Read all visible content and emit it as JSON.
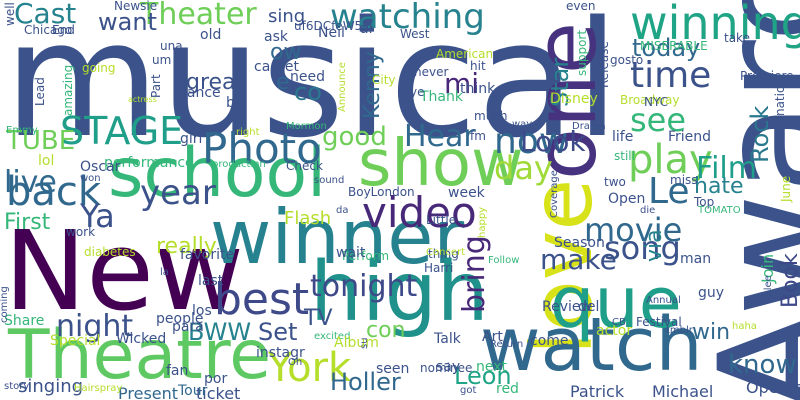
{
  "words": [
    {
      "text": "musical",
      "color": "#3b528b"
    },
    {
      "text": "Award",
      "color": "#3b528b"
    },
    {
      "text": "New",
      "color": "#440154"
    },
    {
      "text": "winner",
      "color": "#26828e"
    },
    {
      "text": "school",
      "color": "#35b779"
    },
    {
      "text": "high",
      "color": "#21918c"
    },
    {
      "text": "love",
      "color": "#d8e219"
    },
    {
      "text": "Theatre",
      "color": "#5ec962"
    },
    {
      "text": "watch",
      "color": "#31688e"
    },
    {
      "text": "que",
      "color": "#1f9e89"
    },
    {
      "text": "one",
      "color": "#46327e"
    },
    {
      "text": "show",
      "color": "#6ece58"
    },
    {
      "text": "winning",
      "color": "#20a486"
    },
    {
      "text": "Photo",
      "color": "#31688e"
    },
    {
      "text": "best",
      "color": "#3e4989"
    },
    {
      "text": "York",
      "color": "#b5de2b"
    },
    {
      "text": "video",
      "color": "#482878"
    },
    {
      "text": "STAGE",
      "color": "#1f9e89"
    },
    {
      "text": "back",
      "color": "#31688e"
    },
    {
      "text": "Theater",
      "color": "#6ece58"
    },
    {
      "text": "watching",
      "color": "#26828e"
    },
    {
      "text": "Cast",
      "color": "#26828e"
    },
    {
      "text": "play",
      "color": "#6ece58"
    },
    {
      "text": "time",
      "color": "#3b528b"
    },
    {
      "text": "see",
      "color": "#35b779"
    },
    {
      "text": "now",
      "color": "#31688e"
    },
    {
      "text": "day",
      "color": "#a0da39"
    },
    {
      "text": "movie",
      "color": "#31688e"
    },
    {
      "text": "song",
      "color": "#3b528b"
    },
    {
      "text": "Ya",
      "color": "#3b528b"
    },
    {
      "text": "year",
      "color": "#3b528b"
    },
    {
      "text": "night",
      "color": "#3b528b"
    },
    {
      "text": "tonight",
      "color": "#3e4989"
    },
    {
      "text": "Hear",
      "color": "#31688e"
    },
    {
      "text": "Look",
      "color": "#3e4989"
    },
    {
      "text": "Film",
      "color": "#1f9e89"
    },
    {
      "text": "Rock",
      "color": "#2a788e"
    },
    {
      "text": "know",
      "color": "#31688e"
    },
    {
      "text": "bring",
      "color": "#482878"
    },
    {
      "text": "make",
      "color": "#3b528b"
    },
    {
      "text": "Leon",
      "color": "#20a486"
    },
    {
      "text": "Holler",
      "color": "#31688e"
    },
    {
      "text": "Le",
      "color": "#31688e"
    },
    {
      "text": "Book",
      "color": "#3e4989"
    },
    {
      "text": "want",
      "color": "#3b528b"
    },
    {
      "text": "today",
      "color": "#31688e"
    },
    {
      "text": "good",
      "color": "#6ece58"
    },
    {
      "text": "TUBE",
      "color": "#6ece58"
    },
    {
      "text": "live",
      "color": "#31688e"
    },
    {
      "text": "First",
      "color": "#35b779"
    },
    {
      "text": "BWW",
      "color": "#26828e"
    },
    {
      "text": "Set",
      "color": "#3b528b"
    },
    {
      "text": "TV",
      "color": "#3b528b"
    },
    {
      "text": "Flash",
      "color": "#b5de2b"
    },
    {
      "text": "Star",
      "color": "#26828e"
    },
    {
      "text": "Kenny",
      "color": "#31688e"
    },
    {
      "text": "co",
      "color": "#2a788e"
    },
    {
      "text": "mi",
      "color": "#482878"
    },
    {
      "text": "ow",
      "color": "#31688e"
    },
    {
      "text": "e",
      "color": "#31688e"
    },
    {
      "text": "win",
      "color": "#31688e"
    },
    {
      "text": "via",
      "color": "#26828e"
    },
    {
      "text": "con",
      "color": "#6ece58"
    },
    {
      "text": "hate",
      "color": "#26828e"
    },
    {
      "text": "really",
      "color": "#b5de2b"
    },
    {
      "text": "Opening",
      "color": "#3b528b"
    },
    {
      "text": "Patrick",
      "color": "#3b528b"
    },
    {
      "text": "Michael",
      "color": "#3b528b"
    },
    {
      "text": "ticket",
      "color": "#3b528b"
    },
    {
      "text": "Tour",
      "color": "#31688e"
    },
    {
      "text": "Present",
      "color": "#31688e"
    },
    {
      "text": "singing",
      "color": "#3b528b"
    },
    {
      "text": "performance",
      "color": "#35b779"
    },
    {
      "text": "great",
      "color": "#3b528b"
    },
    {
      "text": "sing",
      "color": "#3b528b"
    },
    {
      "text": "Neil",
      "color": "#3b528b"
    },
    {
      "text": "al",
      "color": "#3b528b"
    },
    {
      "text": "need",
      "color": "#3b528b"
    },
    {
      "text": "think",
      "color": "#3b528b"
    },
    {
      "text": "Thank",
      "color": "#35b779"
    },
    {
      "text": "Disney",
      "color": "#b5de2b"
    },
    {
      "text": "life",
      "color": "#3b528b"
    },
    {
      "text": "Friend",
      "color": "#3b528b"
    },
    {
      "text": "Open",
      "color": "#3b528b"
    },
    {
      "text": "Top",
      "color": "#3b528b"
    },
    {
      "text": "two",
      "color": "#3b528b"
    },
    {
      "text": "week",
      "color": "#3b528b"
    },
    {
      "text": "Season",
      "color": "#3b528b"
    },
    {
      "text": "Review",
      "color": "#3b528b"
    },
    {
      "text": "del",
      "color": "#3b528b"
    },
    {
      "text": "man",
      "color": "#3b528b"
    },
    {
      "text": "guy",
      "color": "#3b528b"
    },
    {
      "text": "Join",
      "color": "#35b779"
    },
    {
      "text": "Art",
      "color": "#3b528b"
    },
    {
      "text": "actor",
      "color": "#b5de2b"
    },
    {
      "text": "come",
      "color": "#3b528b"
    },
    {
      "text": "next",
      "color": "#35b779"
    },
    {
      "text": "red",
      "color": "#35b779"
    },
    {
      "text": "Return",
      "color": "#3b528b"
    },
    {
      "text": "nominee",
      "color": "#3b528b"
    },
    {
      "text": "seen",
      "color": "#3b528b"
    },
    {
      "text": "Talk",
      "color": "#3b528b"
    },
    {
      "text": "say",
      "color": "#3b528b"
    },
    {
      "text": "Harri",
      "color": "#3b528b"
    },
    {
      "text": "thing",
      "color": "#3b528b"
    },
    {
      "text": "Little",
      "color": "#3b528b"
    },
    {
      "text": "Perform",
      "color": "#35b779"
    },
    {
      "text": "Concert",
      "color": "#b5de2b"
    },
    {
      "text": "BoyLondon",
      "color": "#3b528b"
    },
    {
      "text": "Check",
      "color": "#3b528b"
    },
    {
      "text": "production",
      "color": "#35b779"
    },
    {
      "text": "wait",
      "color": "#3b528b"
    },
    {
      "text": "los",
      "color": "#3b528b"
    },
    {
      "text": "last",
      "color": "#3b528b"
    },
    {
      "text": "favorite",
      "color": "#3b528b"
    },
    {
      "text": "instagr",
      "color": "#3b528b"
    },
    {
      "text": "por",
      "color": "#3b528b"
    },
    {
      "text": "fan",
      "color": "#3b528b"
    },
    {
      "text": "Oh",
      "color": "#3b528b"
    },
    {
      "text": "excited",
      "color": "#35b779"
    },
    {
      "text": "Album",
      "color": "#b5de2b"
    },
    {
      "text": "su",
      "color": "#3b528b"
    },
    {
      "text": "Special",
      "color": "#b5de2b"
    },
    {
      "text": "Wicked",
      "color": "#3b528b"
    },
    {
      "text": "Share",
      "color": "#35b779"
    },
    {
      "text": "people",
      "color": "#3b528b"
    },
    {
      "text": "para",
      "color": "#3b528b"
    },
    {
      "text": "girl",
      "color": "#3b528b"
    },
    {
      "text": "lol",
      "color": "#b5de2b"
    },
    {
      "text": "Oscar",
      "color": "#3b528b"
    },
    {
      "text": "won",
      "color": "#3b528b"
    },
    {
      "text": "Emmy",
      "color": "#35b779"
    },
    {
      "text": "dance",
      "color": "#3b528b"
    },
    {
      "text": "big",
      "color": "#3b528b"
    },
    {
      "text": "carpet",
      "color": "#3b528b"
    },
    {
      "text": "ask",
      "color": "#3b528b"
    },
    {
      "text": "old",
      "color": "#3b528b"
    },
    {
      "text": "um",
      "color": "#3b528b"
    },
    {
      "text": "una",
      "color": "#3b528b"
    },
    {
      "text": "Part",
      "color": "#3b528b"
    },
    {
      "text": "going",
      "color": "#b5de2b"
    },
    {
      "text": "amazing",
      "color": "#35b779"
    },
    {
      "text": "Lead",
      "color": "#3b528b"
    },
    {
      "text": "Chicago",
      "color": "#3b528b"
    },
    {
      "text": "End",
      "color": "#3b528b"
    },
    {
      "text": "Newsie",
      "color": "#3b528b"
    },
    {
      "text": "well",
      "color": "#3b528b"
    },
    {
      "text": "uf6DCfeW5iI",
      "color": "#3b528b"
    },
    {
      "text": "West",
      "color": "#3b528b"
    },
    {
      "text": "American",
      "color": "#b5de2b"
    },
    {
      "text": "hit",
      "color": "#3b528b"
    },
    {
      "text": "ye",
      "color": "#3b528b"
    },
    {
      "text": "never",
      "color": "#3b528b"
    },
    {
      "text": "City",
      "color": "#b5de2b"
    },
    {
      "text": "Announce",
      "color": "#b5de2b"
    },
    {
      "text": "even",
      "color": "#3b528b"
    },
    {
      "text": "take",
      "color": "#3b528b"
    },
    {
      "text": "gosto",
      "color": "#3b528b"
    },
    {
      "text": "MISERABLE",
      "color": "#35b779"
    },
    {
      "text": "Release",
      "color": "#3b528b"
    },
    {
      "text": "support",
      "color": "#35b779"
    },
    {
      "text": "Broadway",
      "color": "#b5de2b"
    },
    {
      "text": "NYC",
      "color": "#3b528b"
    },
    {
      "text": "nomination",
      "color": "#3b528b"
    },
    {
      "text": "Premiere",
      "color": "#3b528b"
    },
    {
      "text": "much",
      "color": "#3b528b"
    },
    {
      "text": "fm",
      "color": "#3b528b"
    },
    {
      "text": "way",
      "color": "#3b528b"
    },
    {
      "text": "Drama",
      "color": "#3b528b"
    },
    {
      "text": "still",
      "color": "#35b779"
    },
    {
      "text": "miss",
      "color": "#3b528b"
    },
    {
      "text": "die",
      "color": "#3b528b"
    },
    {
      "text": "TOMATO",
      "color": "#35b779"
    },
    {
      "text": "June",
      "color": "#b5de2b"
    },
    {
      "text": "Coverage",
      "color": "#3b528b"
    },
    {
      "text": "Festival",
      "color": "#3b528b"
    },
    {
      "text": "Annual",
      "color": "#3b528b"
    },
    {
      "text": "tmblr",
      "color": "#3b528b"
    },
    {
      "text": "CB",
      "color": "#3b528b"
    },
    {
      "text": "haha",
      "color": "#b5de2b"
    },
    {
      "text": "Glee",
      "color": "#3b528b"
    },
    {
      "text": "Follow",
      "color": "#35b779"
    },
    {
      "text": "happy",
      "color": "#b5de2b"
    },
    {
      "text": "got",
      "color": "#3b528b"
    },
    {
      "text": "Hairspray",
      "color": "#b5de2b"
    },
    {
      "text": "story",
      "color": "#3b528b"
    },
    {
      "text": "coming",
      "color": "#3b528b"
    },
    {
      "text": "diabetes",
      "color": "#b5de2b"
    },
    {
      "text": "work",
      "color": "#3b528b"
    },
    {
      "text": "la",
      "color": "#3b528b"
    },
    {
      "text": "sound",
      "color": "#3b528b"
    },
    {
      "text": "da",
      "color": "#3b528b"
    },
    {
      "text": "Mormon",
      "color": "#35b779"
    },
    {
      "text": "right",
      "color": "#b5de2b"
    },
    {
      "text": "actress",
      "color": "#b5de2b"
    },
    {
      "text": "alway",
      "color": "#b5de2b"
    }
  ]
}
